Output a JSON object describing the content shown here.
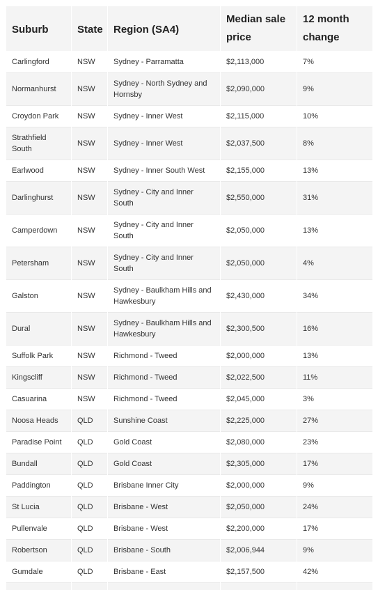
{
  "table": {
    "headers": [
      "Suburb",
      "State",
      "Region (SA4)",
      "Median sale price",
      "12 month change"
    ],
    "rows": [
      {
        "suburb": "Carlingford",
        "state": "NSW",
        "region": "Sydney - Parramatta",
        "price": "$2,113,000",
        "change": "7%"
      },
      {
        "suburb": "Normanhurst",
        "state": "NSW",
        "region": "Sydney - North Sydney and Hornsby",
        "price": "$2,090,000",
        "change": "9%"
      },
      {
        "suburb": "Croydon Park",
        "state": "NSW",
        "region": "Sydney - Inner West",
        "price": "$2,115,000",
        "change": "10%"
      },
      {
        "suburb": "Strathfield South",
        "state": "NSW",
        "region": "Sydney - Inner West",
        "price": "$2,037,500",
        "change": "8%"
      },
      {
        "suburb": "Earlwood",
        "state": "NSW",
        "region": "Sydney - Inner South West",
        "price": "$2,155,000",
        "change": "13%"
      },
      {
        "suburb": "Darlinghurst",
        "state": "NSW",
        "region": "Sydney - City and Inner South",
        "price": "$2,550,000",
        "change": "31%"
      },
      {
        "suburb": "Camperdown",
        "state": "NSW",
        "region": "Sydney - City and Inner South",
        "price": "$2,050,000",
        "change": "13%"
      },
      {
        "suburb": "Petersham",
        "state": "NSW",
        "region": "Sydney - City and Inner South",
        "price": "$2,050,000",
        "change": "4%"
      },
      {
        "suburb": "Galston",
        "state": "NSW",
        "region": "Sydney - Baulkham Hills and Hawkesbury",
        "price": "$2,430,000",
        "change": "34%"
      },
      {
        "suburb": "Dural",
        "state": "NSW",
        "region": "Sydney - Baulkham Hills and Hawkesbury",
        "price": "$2,300,500",
        "change": "16%"
      },
      {
        "suburb": "Suffolk Park",
        "state": "NSW",
        "region": "Richmond - Tweed",
        "price": "$2,000,000",
        "change": "13%"
      },
      {
        "suburb": "Kingscliff",
        "state": "NSW",
        "region": "Richmond - Tweed",
        "price": "$2,022,500",
        "change": "11%"
      },
      {
        "suburb": "Casuarina",
        "state": "NSW",
        "region": "Richmond - Tweed",
        "price": "$2,045,000",
        "change": "3%"
      },
      {
        "suburb": "Noosa Heads",
        "state": "QLD",
        "region": "Sunshine Coast",
        "price": "$2,225,000",
        "change": "27%"
      },
      {
        "suburb": "Paradise Point",
        "state": "QLD",
        "region": "Gold Coast",
        "price": "$2,080,000",
        "change": "23%"
      },
      {
        "suburb": "Bundall",
        "state": "QLD",
        "region": "Gold Coast",
        "price": "$2,305,000",
        "change": "17%"
      },
      {
        "suburb": "Paddington",
        "state": "QLD",
        "region": "Brisbane Inner City",
        "price": "$2,000,000",
        "change": "9%"
      },
      {
        "suburb": "St Lucia",
        "state": "QLD",
        "region": "Brisbane - West",
        "price": "$2,050,000",
        "change": "24%"
      },
      {
        "suburb": "Pullenvale",
        "state": "QLD",
        "region": "Brisbane - West",
        "price": "$2,200,000",
        "change": "17%"
      },
      {
        "suburb": "Robertson",
        "state": "QLD",
        "region": "Brisbane - South",
        "price": "$2,006,944",
        "change": "9%"
      },
      {
        "suburb": "Gumdale",
        "state": "QLD",
        "region": "Brisbane - East",
        "price": "$2,157,500",
        "change": "42%"
      }
    ]
  },
  "colors": {
    "header_bg": "#f4f4f4",
    "stripe_bg": "#f4f4f4",
    "row_bg": "#ffffff",
    "text": "#333333"
  }
}
